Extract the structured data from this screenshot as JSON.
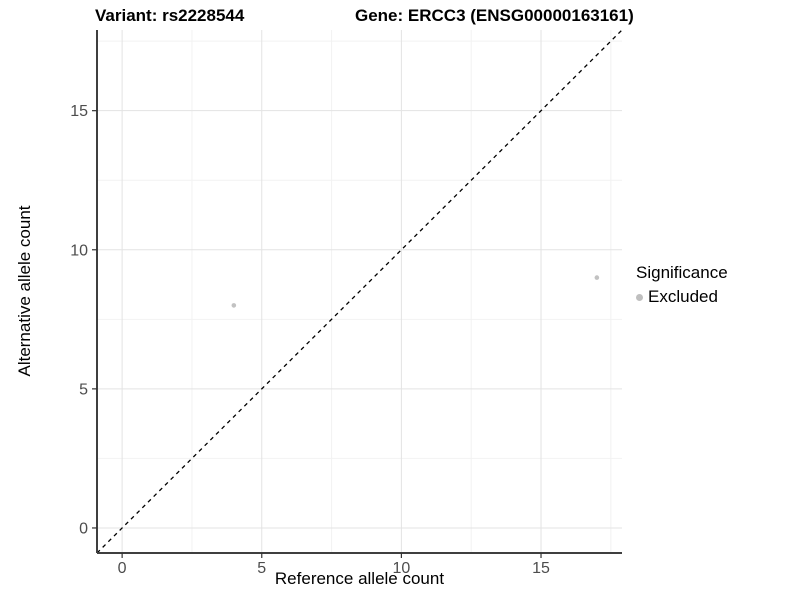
{
  "header": {
    "variant_title": "Variant: rs2228544",
    "gene_title": "Gene: ERCC3 (ENSG00000163161)"
  },
  "chart_data": {
    "type": "scatter",
    "xlabel": "Reference allele count",
    "ylabel": "Alternative allele count",
    "xlim": [
      -0.9,
      17.9
    ],
    "ylim": [
      -0.9,
      17.9
    ],
    "x_major_ticks": [
      0,
      5,
      10,
      15
    ],
    "y_major_ticks": [
      0,
      5,
      10,
      15
    ],
    "x_minor_ticks": [
      2.5,
      7.5,
      12.5,
      17.5
    ],
    "y_minor_ticks": [
      2.5,
      7.5,
      12.5,
      17.5
    ],
    "grid": true,
    "series": [
      {
        "name": "Excluded",
        "color": "#c2c2c2",
        "points": [
          {
            "x": 4,
            "y": 8
          },
          {
            "x": 17,
            "y": 9
          }
        ]
      }
    ],
    "reference_line": {
      "type": "identity",
      "style": "dashed",
      "color": "#000000"
    },
    "legend": {
      "position": "right",
      "title": "Significance",
      "entries": [
        {
          "label": "Excluded",
          "color": "#bfbfbf"
        }
      ]
    },
    "colors": {
      "grid_major": "#e3e3e3",
      "grid_minor": "#f2f2f2",
      "axis_line": "#3f3f3f",
      "tick_mark": "#333333",
      "tick_label": "#4d4d4d",
      "title_text": "#000000"
    }
  }
}
